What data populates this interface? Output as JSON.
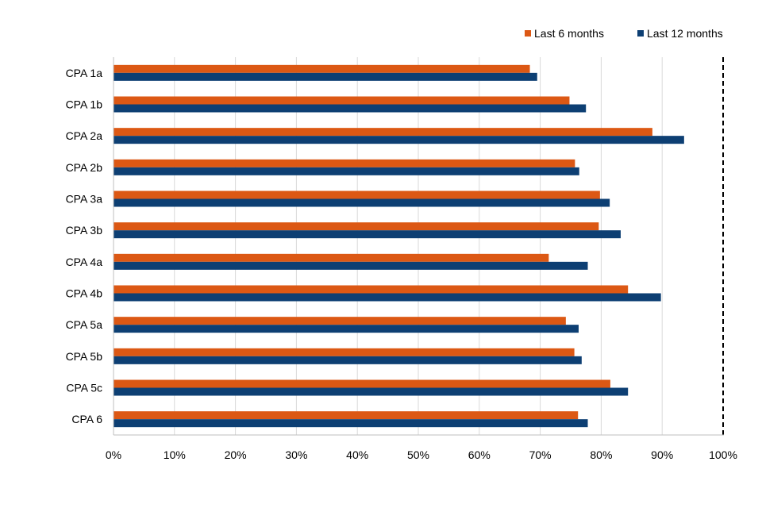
{
  "chart_data": {
    "type": "bar",
    "orientation": "horizontal",
    "categories": [
      "CPA 1a",
      "CPA 1b",
      "CPA 2a",
      "CPA 2b",
      "CPA 3a",
      "CPA 3b",
      "CPA 4a",
      "CPA 4b",
      "CPA 5a",
      "CPA 5b",
      "CPA 5c",
      "CPA 6"
    ],
    "series": [
      {
        "name": "Last 6 months",
        "color": "#dc5814",
        "values": [
          68.3,
          74.8,
          88.4,
          75.7,
          79.8,
          79.6,
          71.4,
          84.4,
          74.2,
          75.6,
          81.5,
          76.2
        ]
      },
      {
        "name": "Last 12 months",
        "color": "#0d3f73",
        "values": [
          69.5,
          77.5,
          93.6,
          76.4,
          81.4,
          83.2,
          77.8,
          89.8,
          76.3,
          76.8,
          84.4,
          77.8
        ]
      }
    ],
    "xlim": [
      0,
      100
    ],
    "x_ticks": [
      "0%",
      "10%",
      "20%",
      "30%",
      "40%",
      "50%",
      "60%",
      "70%",
      "80%",
      "90%",
      "100%"
    ],
    "reference_line": 100,
    "grid": true,
    "legend_position": "top-right",
    "title": "",
    "xlabel": "",
    "ylabel": ""
  }
}
